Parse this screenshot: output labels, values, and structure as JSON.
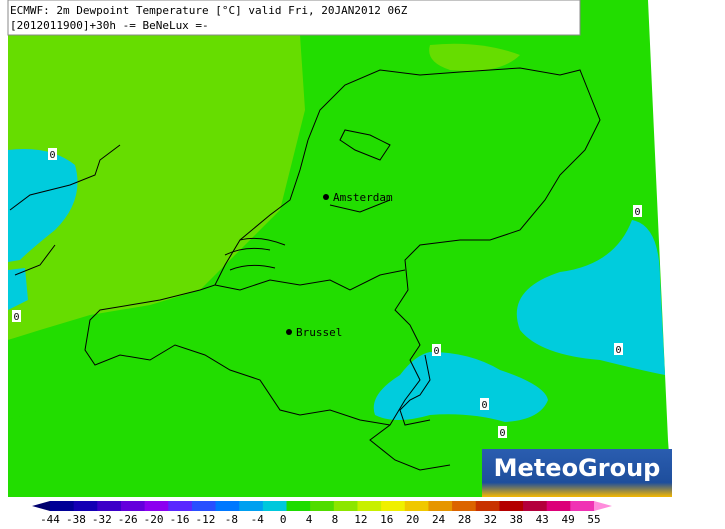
{
  "header": {
    "line1": "ECMWF: 2m Dewpoint Temperature [°C] valid Fri, 20JAN2012 06Z",
    "line2": "[2012011900]+30h  -= BeNeLux =-"
  },
  "cities": [
    "Amsterdam",
    "Brussel"
  ],
  "contour_labels": [
    "0",
    "0",
    "0",
    "0",
    "0",
    "0",
    "0"
  ],
  "logo": "MeteoGroup",
  "legend": {
    "labels": [
      "-44",
      "-38",
      "-32",
      "-26",
      "-20",
      "-16",
      "-12",
      "-8",
      "-4",
      "0",
      "4",
      "8",
      "12",
      "16",
      "20",
      "24",
      "28",
      "32",
      "38",
      "43",
      "49",
      "55"
    ],
    "colors": [
      "#00006e",
      "#000096",
      "#1400b4",
      "#3c00c8",
      "#6400dc",
      "#8c00f0",
      "#5a28ff",
      "#2850ff",
      "#0078ff",
      "#00a0f0",
      "#00c8dc",
      "#1edc00",
      "#50dc00",
      "#8ce600",
      "#c8f000",
      "#f0f000",
      "#f0c800",
      "#e69600",
      "#dc6400",
      "#c83200",
      "#b40000",
      "#b4003c",
      "#dc0078",
      "#f032b4",
      "#ff8cdc"
    ]
  }
}
